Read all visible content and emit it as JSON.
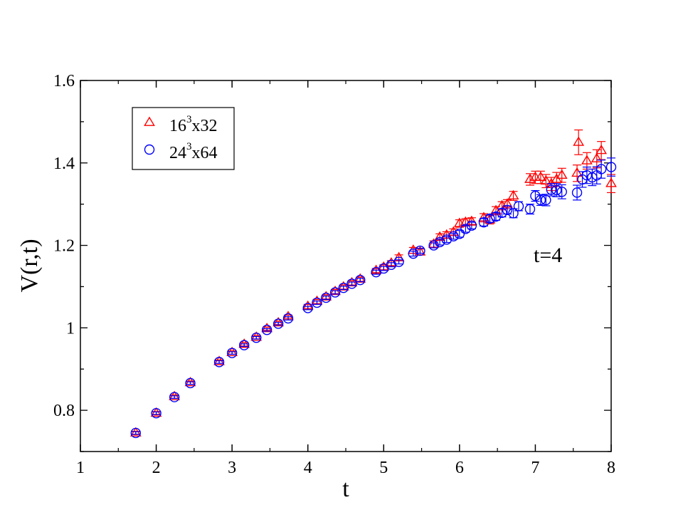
{
  "chart_data": {
    "type": "scatter",
    "xlabel": "t",
    "ylabel": "V(r,t)",
    "annotation": "t=4",
    "xlim": [
      1,
      8
    ],
    "ylim": [
      0.7,
      1.6
    ],
    "x_ticks": [
      "1",
      "2",
      "3",
      "4",
      "5",
      "6",
      "7",
      "8"
    ],
    "y_ticks": [
      "0.8",
      "1",
      "1.2",
      "1.4",
      "1.6"
    ],
    "grid": false,
    "legend_position": "top-left",
    "series": [
      {
        "name": "16³x32",
        "legend_base": "16",
        "legend_sup": "3",
        "legend_tail": "x32",
        "marker": "triangle",
        "color": "#ff0000",
        "points": [
          [
            1.73,
            0.745,
            0.004
          ],
          [
            2.0,
            0.793,
            0.004
          ],
          [
            2.24,
            0.833,
            0.004
          ],
          [
            2.45,
            0.867,
            0.004
          ],
          [
            2.83,
            0.918,
            0.004
          ],
          [
            3.0,
            0.94,
            0.004
          ],
          [
            3.16,
            0.96,
            0.004
          ],
          [
            3.32,
            0.977,
            0.004
          ],
          [
            3.46,
            0.998,
            0.004
          ],
          [
            3.61,
            1.012,
            0.004
          ],
          [
            3.74,
            1.027,
            0.004
          ],
          [
            4.0,
            1.052,
            0.005
          ],
          [
            4.12,
            1.064,
            0.005
          ],
          [
            4.24,
            1.075,
            0.005
          ],
          [
            4.36,
            1.088,
            0.005
          ],
          [
            4.47,
            1.099,
            0.005
          ],
          [
            4.58,
            1.109,
            0.005
          ],
          [
            4.69,
            1.118,
            0.005
          ],
          [
            4.9,
            1.139,
            0.005
          ],
          [
            5.0,
            1.147,
            0.006
          ],
          [
            5.1,
            1.157,
            0.006
          ],
          [
            5.2,
            1.17,
            0.007
          ],
          [
            5.39,
            1.188,
            0.007
          ],
          [
            5.48,
            1.184,
            0.007
          ],
          [
            5.66,
            1.203,
            0.008
          ],
          [
            5.74,
            1.22,
            0.008
          ],
          [
            5.83,
            1.225,
            0.008
          ],
          [
            5.92,
            1.232,
            0.008
          ],
          [
            6.0,
            1.253,
            0.009
          ],
          [
            6.08,
            1.256,
            0.009
          ],
          [
            6.16,
            1.258,
            0.009
          ],
          [
            6.32,
            1.267,
            0.01
          ],
          [
            6.4,
            1.262,
            0.01
          ],
          [
            6.48,
            1.284,
            0.01
          ],
          [
            6.56,
            1.296,
            0.01
          ],
          [
            6.63,
            1.3,
            0.011
          ],
          [
            6.71,
            1.32,
            0.011
          ],
          [
            6.93,
            1.36,
            0.014
          ],
          [
            7.0,
            1.365,
            0.015
          ],
          [
            7.07,
            1.365,
            0.015
          ],
          [
            7.14,
            1.356,
            0.016
          ],
          [
            7.21,
            1.349,
            0.016
          ],
          [
            7.28,
            1.36,
            0.017
          ],
          [
            7.35,
            1.37,
            0.017
          ],
          [
            7.55,
            1.375,
            0.02
          ],
          [
            7.57,
            1.45,
            0.03
          ],
          [
            7.68,
            1.405,
            0.02
          ],
          [
            7.81,
            1.41,
            0.022
          ],
          [
            7.87,
            1.43,
            0.022
          ],
          [
            8.0,
            1.35,
            0.022
          ]
        ]
      },
      {
        "name": "24³x64",
        "legend_base": "24",
        "legend_sup": "3",
        "legend_tail": "x64",
        "marker": "circle",
        "color": "#0000ff",
        "points": [
          [
            1.73,
            0.745,
            0.003
          ],
          [
            2.0,
            0.793,
            0.003
          ],
          [
            2.24,
            0.832,
            0.003
          ],
          [
            2.45,
            0.866,
            0.003
          ],
          [
            2.83,
            0.917,
            0.003
          ],
          [
            3.0,
            0.939,
            0.003
          ],
          [
            3.16,
            0.958,
            0.003
          ],
          [
            3.32,
            0.976,
            0.003
          ],
          [
            3.46,
            0.995,
            0.003
          ],
          [
            3.61,
            1.01,
            0.003
          ],
          [
            3.74,
            1.023,
            0.004
          ],
          [
            4.0,
            1.048,
            0.004
          ],
          [
            4.12,
            1.061,
            0.004
          ],
          [
            4.24,
            1.073,
            0.004
          ],
          [
            4.36,
            1.086,
            0.004
          ],
          [
            4.47,
            1.097,
            0.004
          ],
          [
            4.58,
            1.107,
            0.004
          ],
          [
            4.69,
            1.116,
            0.004
          ],
          [
            4.9,
            1.135,
            0.005
          ],
          [
            5.0,
            1.144,
            0.005
          ],
          [
            5.1,
            1.153,
            0.005
          ],
          [
            5.2,
            1.16,
            0.005
          ],
          [
            5.39,
            1.18,
            0.006
          ],
          [
            5.48,
            1.187,
            0.006
          ],
          [
            5.66,
            1.2,
            0.006
          ],
          [
            5.74,
            1.208,
            0.007
          ],
          [
            5.83,
            1.214,
            0.007
          ],
          [
            5.92,
            1.222,
            0.007
          ],
          [
            6.0,
            1.228,
            0.008
          ],
          [
            6.08,
            1.24,
            0.008
          ],
          [
            6.16,
            1.248,
            0.008
          ],
          [
            6.32,
            1.256,
            0.009
          ],
          [
            6.4,
            1.265,
            0.009
          ],
          [
            6.48,
            1.27,
            0.009
          ],
          [
            6.56,
            1.279,
            0.01
          ],
          [
            6.63,
            1.286,
            0.01
          ],
          [
            6.71,
            1.278,
            0.011
          ],
          [
            6.78,
            1.295,
            0.011
          ],
          [
            6.93,
            1.288,
            0.012
          ],
          [
            7.0,
            1.32,
            0.013
          ],
          [
            7.07,
            1.31,
            0.013
          ],
          [
            7.14,
            1.31,
            0.014
          ],
          [
            7.21,
            1.335,
            0.015
          ],
          [
            7.28,
            1.334,
            0.016
          ],
          [
            7.35,
            1.33,
            0.017
          ],
          [
            7.55,
            1.328,
            0.018
          ],
          [
            7.62,
            1.36,
            0.019
          ],
          [
            7.68,
            1.37,
            0.02
          ],
          [
            7.75,
            1.365,
            0.02
          ],
          [
            7.81,
            1.37,
            0.021
          ],
          [
            7.87,
            1.385,
            0.022
          ],
          [
            8.0,
            1.39,
            0.022
          ]
        ]
      }
    ]
  }
}
